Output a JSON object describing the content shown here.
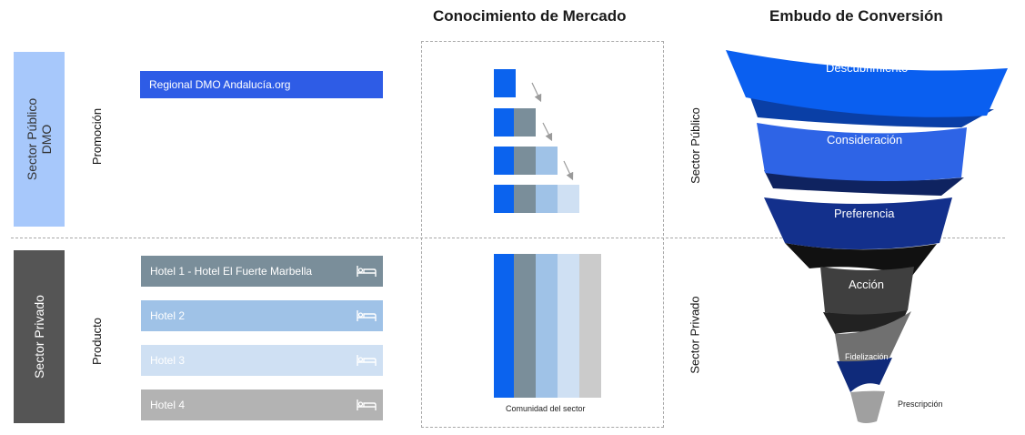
{
  "headings": {
    "market": "Conocimiento de Mercado",
    "funnel": "Embudo de Conversión"
  },
  "left": {
    "public_block_lines": [
      "Sector Público",
      "DMO"
    ],
    "private_block": "Sector Privado",
    "promotion_label": "Promoción",
    "product_label": "Producto"
  },
  "bars": {
    "dmo": "Regional DMO Andalucía.org",
    "hotels": [
      "Hotel 1 - Hotel El Fuerte Marbella",
      "Hotel 2",
      "Hotel 3",
      "Hotel 4"
    ],
    "hotel_icon": "bed-icon"
  },
  "market": {
    "caption": "Comunidad del sector"
  },
  "funnel": {
    "public_label": "Sector Público",
    "private_label": "Sector Privado",
    "stages": [
      "Descubrimiento",
      "Consideración",
      "Preferencia",
      "Acción",
      "Fidelización",
      "Prescripción"
    ]
  },
  "colors": {
    "public_block": "#a7c8fb",
    "private_block": "#555555",
    "dmo_bar": "#2e5ce6",
    "hotel1": "#7a8e9a",
    "hotel2": "#9fc2e7",
    "hotel3": "#cfe0f3",
    "hotel4": "#b3b3b3",
    "stack": [
      "#0b63ee",
      "#7a8e9a",
      "#9fc2e7",
      "#cfe0f3",
      "#cbcbcb"
    ],
    "funnel": [
      "#0a5ff0",
      "#2e64e6",
      "#13308c",
      "#3f3f3f",
      "#6e6e6e",
      "#9a9a9a"
    ]
  }
}
